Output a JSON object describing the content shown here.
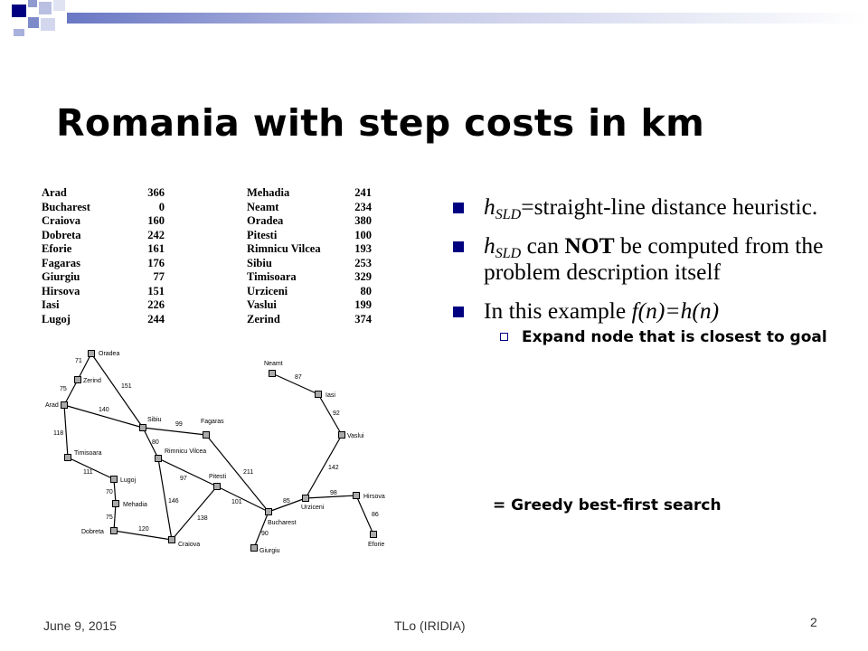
{
  "slide": {
    "title": "Romania with step costs in km",
    "heuristic_table_left": [
      {
        "city": "Arad",
        "value": "366"
      },
      {
        "city": "Bucharest",
        "value": "0"
      },
      {
        "city": "Craiova",
        "value": "160"
      },
      {
        "city": "Dobreta",
        "value": "242"
      },
      {
        "city": "Eforie",
        "value": "161"
      },
      {
        "city": "Fagaras",
        "value": "176"
      },
      {
        "city": "Giurgiu",
        "value": "77"
      },
      {
        "city": "Hirsova",
        "value": "151"
      },
      {
        "city": "Iasi",
        "value": "226"
      },
      {
        "city": "Lugoj",
        "value": "244"
      }
    ],
    "heuristic_table_right": [
      {
        "city": "Mehadia",
        "value": "241"
      },
      {
        "city": "Neamt",
        "value": "234"
      },
      {
        "city": "Oradea",
        "value": "380"
      },
      {
        "city": "Pitesti",
        "value": "100"
      },
      {
        "city": "Rimnicu Vilcea",
        "value": "193"
      },
      {
        "city": "Sibiu",
        "value": "253"
      },
      {
        "city": "Timisoara",
        "value": "329"
      },
      {
        "city": "Urziceni",
        "value": "80"
      },
      {
        "city": "Vaslui",
        "value": "199"
      },
      {
        "city": "Zerind",
        "value": "374"
      }
    ],
    "map": {
      "cities": [
        "Oradea",
        "Zerind",
        "Arad",
        "Sibiu",
        "Fagaras",
        "Timisoara",
        "Rimnicu Vilcea",
        "Lugoj",
        "Pitesti",
        "Mehadia",
        "Dobreta",
        "Craiova",
        "Bucharest",
        "Giurgiu",
        "Urziceni",
        "Neamt",
        "Iasi",
        "Vaslui",
        "Hirsova",
        "Eforie"
      ],
      "distances": [
        "71",
        "75",
        "151",
        "140",
        "118",
        "99",
        "80",
        "211",
        "111",
        "97",
        "146",
        "70",
        "101",
        "75",
        "138",
        "120",
        "90",
        "85",
        "98",
        "86",
        "142",
        "92",
        "87"
      ]
    },
    "bullet1_var": "h",
    "bullet1_sub": "SLD",
    "bullet1_text": "=straight-line distance heuristic.",
    "bullet2_var": "h",
    "bullet2_sub": "SLD",
    "bullet2_pre": " can ",
    "bullet2_bold": "NOT",
    "bullet2_post": " be computed from the problem description itself",
    "bullet3_pre": "In this example ",
    "bullet3_italic": "f(n)=h(n)",
    "subbullet": "Expand node that is closest to goal",
    "greedy": "= Greedy best-first search",
    "footer_date": "June 9, 2015",
    "footer_center": "TLo (IRIDIA)",
    "page_number": "2"
  }
}
